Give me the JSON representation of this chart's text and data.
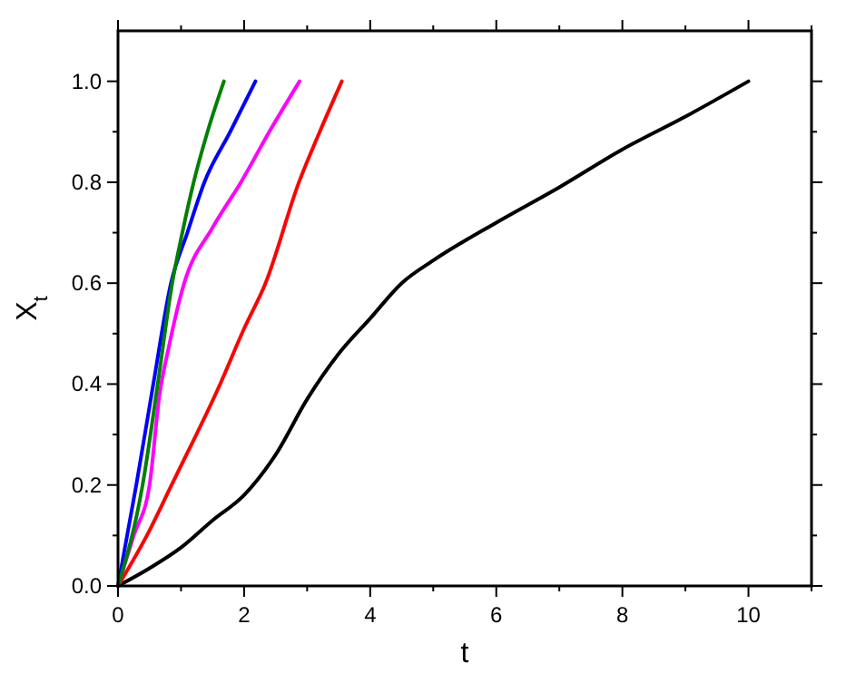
{
  "chart_data": {
    "type": "line",
    "xlabel": "t",
    "ylabel": "X$_{t}$",
    "xlim": [
      0,
      11
    ],
    "ylim": [
      0,
      1.1
    ],
    "xticks": [
      0,
      {
        "value": 1,
        "label": null
      },
      2,
      {
        "value": 3,
        "label": null
      },
      4,
      {
        "value": 5,
        "label": null
      },
      6,
      {
        "value": 7,
        "label": null
      },
      8,
      {
        "value": 9,
        "label": null
      },
      10,
      {
        "value": 11,
        "label": null
      }
    ],
    "yticks": [
      {
        "value": 0,
        "label": "0.0"
      },
      {
        "value": 0.1,
        "label": null
      },
      {
        "value": 0.2,
        "label": "0.2"
      },
      {
        "value": 0.3,
        "label": null
      },
      {
        "value": 0.4,
        "label": "0.4"
      },
      {
        "value": 0.5,
        "label": null
      },
      {
        "value": 0.6,
        "label": "0.6"
      },
      {
        "value": 0.7,
        "label": null
      },
      {
        "value": 0.8,
        "label": "0.8"
      },
      {
        "value": 0.9,
        "label": null
      },
      {
        "value": 1,
        "label": "1.0"
      }
    ],
    "grid": false,
    "marker": "none",
    "line_style": "solid",
    "series": [
      {
        "color": "#000000",
        "x": [
          0,
          0.5,
          1,
          1.5,
          2,
          2.5,
          3,
          3.5,
          4,
          4.5,
          5,
          6,
          7,
          8,
          9,
          10
        ],
        "values": [
          0,
          0.035,
          0.076,
          0.13,
          0.18,
          0.26,
          0.37,
          0.46,
          0.53,
          0.6,
          0.645,
          0.72,
          0.79,
          0.865,
          0.93,
          1.0
        ]
      },
      {
        "color": "#ff0000",
        "x": [
          0,
          0.5,
          0.85,
          1.62,
          2,
          2.34,
          2.87,
          3.2,
          3.55
        ],
        "values": [
          0,
          0.11,
          0.2,
          0.4,
          0.51,
          0.6,
          0.8,
          0.9,
          1.0
        ]
      },
      {
        "color": "#ff00ff",
        "x": [
          0,
          0.25,
          0.5,
          0.66,
          0.8,
          1.05,
          1.5,
          1.95,
          2.4,
          2.88
        ],
        "values": [
          0,
          0.1,
          0.2,
          0.38,
          0.47,
          0.6,
          0.71,
          0.8,
          0.9,
          1.0
        ]
      },
      {
        "color": "#0000ff",
        "x": [
          0,
          0.29,
          0.56,
          0.84,
          1.1,
          1.37,
          1.78,
          2.18
        ],
        "values": [
          0,
          0.2,
          0.4,
          0.6,
          0.7,
          0.8,
          0.9,
          1.0
        ]
      },
      {
        "color": "#008000",
        "x": [
          0,
          0.39,
          0.63,
          0.86,
          1.02,
          1.2,
          1.42,
          1.68
        ],
        "values": [
          0,
          0.2,
          0.4,
          0.6,
          0.7,
          0.8,
          0.9,
          1.0
        ]
      }
    ]
  }
}
